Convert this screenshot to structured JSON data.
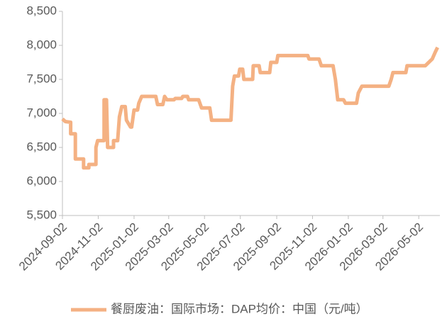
{
  "chart_data": {
    "type": "line",
    "x": [
      "2024-09-02",
      "2024-09-07",
      "2024-09-16",
      "2024-09-16",
      "2024-09-24",
      "2024-09-24",
      "2024-10-08",
      "2024-10-08",
      "2024-10-17",
      "2024-10-17",
      "2024-10-29",
      "2024-10-29",
      "2024-11-01",
      "2024-11-12",
      "2024-11-12",
      "2024-11-16",
      "2024-11-18",
      "2024-11-28",
      "2024-11-28",
      "2024-12-05",
      "2024-12-08",
      "2024-12-12",
      "2024-12-18",
      "2024-12-20",
      "2024-12-27",
      "2024-12-29",
      "2025-01-02",
      "2025-01-08",
      "2025-01-10",
      "2025-01-15",
      "2025-02-08",
      "2025-02-11",
      "2025-02-20",
      "2025-02-23",
      "2025-02-27",
      "2025-03-11",
      "2025-03-13",
      "2025-03-24",
      "2025-03-26",
      "2025-04-03",
      "2025-04-05",
      "2025-04-22",
      "2025-04-27",
      "2025-05-11",
      "2025-05-14",
      "2025-06-16",
      "2025-06-19",
      "2025-06-22",
      "2025-06-29",
      "2025-07-01",
      "2025-07-06",
      "2025-07-08",
      "2025-07-23",
      "2025-07-24",
      "2025-08-03",
      "2025-08-05",
      "2025-08-21",
      "2025-08-23",
      "2025-09-02",
      "2025-09-04",
      "2025-10-25",
      "2025-10-27",
      "2025-11-13",
      "2025-11-17",
      "2025-12-07",
      "2025-12-11",
      "2025-12-15",
      "2025-12-25",
      "2025-12-28",
      "2026-01-16",
      "2026-01-19",
      "2026-01-25",
      "2026-03-12",
      "2026-03-16",
      "2026-03-19",
      "2026-04-10",
      "2026-04-12",
      "2026-05-13",
      "2026-05-25",
      "2026-05-30",
      "2026-06-03"
    ],
    "series": [
      {
        "name": "餐厨废油：国际市场：DAP均价：中国（元/吨）",
        "color": "#f4b183",
        "values": [
          6920,
          6880,
          6870,
          6700,
          6700,
          6330,
          6330,
          6200,
          6200,
          6250,
          6250,
          6500,
          6600,
          6600,
          7200,
          7200,
          6500,
          6500,
          6600,
          6600,
          6950,
          7100,
          7100,
          6900,
          6800,
          6800,
          7050,
          7050,
          7150,
          7250,
          7250,
          7130,
          7130,
          7250,
          7200,
          7200,
          7220,
          7220,
          7250,
          7250,
          7200,
          7200,
          7080,
          7080,
          6900,
          6900,
          7400,
          7550,
          7550,
          7650,
          7650,
          7500,
          7500,
          7700,
          7700,
          7600,
          7600,
          7750,
          7750,
          7850,
          7850,
          7800,
          7800,
          7700,
          7700,
          7500,
          7200,
          7200,
          7150,
          7150,
          7300,
          7400,
          7400,
          7500,
          7600,
          7600,
          7700,
          7700,
          7800,
          7900,
          7970
        ]
      }
    ],
    "xlim": [
      "2024-09-02",
      "2026-06-07"
    ],
    "xticks": [
      "2024-09-02",
      "2024-11-02",
      "2025-01-02",
      "2025-03-02",
      "2025-05-02",
      "2025-07-02",
      "2025-09-02",
      "2025-11-02",
      "2026-01-02",
      "2026-03-02",
      "2026-05-02"
    ],
    "ylim": [
      5500,
      8500
    ],
    "yticks": [
      {
        "value": 5500,
        "label": "5,500"
      },
      {
        "value": 6000,
        "label": "6,000"
      },
      {
        "value": 6500,
        "label": "6,500"
      },
      {
        "value": 7000,
        "label": "7,000"
      },
      {
        "value": 7500,
        "label": "7,500"
      },
      {
        "value": 8000,
        "label": "8,000"
      },
      {
        "value": 8500,
        "label": "8,500"
      }
    ],
    "grid": false,
    "legend": "bottom"
  }
}
